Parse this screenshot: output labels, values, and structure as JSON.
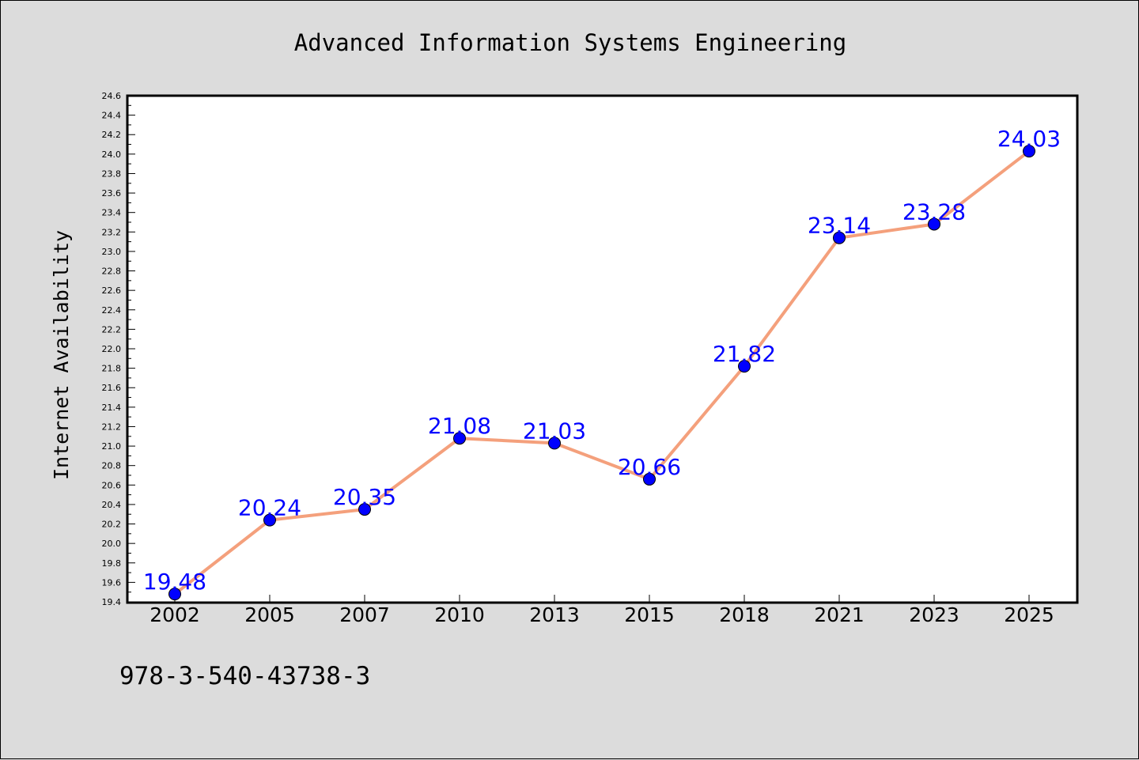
{
  "colors": {
    "background": "#dcdcdc",
    "plot_background": "#ffffff",
    "line": "#f4a07c",
    "marker": "#0000ff",
    "data_label": "#0000ff"
  },
  "footnote": "978-3-540-43738-3",
  "chart_data": {
    "type": "line",
    "title": "Advanced Information Systems Engineering",
    "xlabel": "",
    "ylabel": "Internet Availability",
    "categories": [
      "2002",
      "2005",
      "2007",
      "2010",
      "2013",
      "2015",
      "2018",
      "2021",
      "2023",
      "2025"
    ],
    "series": [
      {
        "values": [
          19.48,
          20.24,
          20.35,
          21.08,
          21.03,
          20.66,
          21.82,
          23.14,
          23.28,
          24.03
        ],
        "labels": [
          "19.48",
          "20.24",
          "20.35",
          "21.08",
          "21.03",
          "20.66",
          "21.82",
          "23.14",
          "23.28",
          "24.03"
        ]
      }
    ],
    "ylim": [
      19.4,
      24.6
    ],
    "yticks": [
      "19.4",
      "19.6",
      "19.8",
      "20.0",
      "20.2",
      "20.4",
      "20.6",
      "20.8",
      "21.0",
      "21.2",
      "21.4",
      "21.6",
      "21.8",
      "22.0",
      "22.2",
      "22.4",
      "22.6",
      "22.8",
      "23.0",
      "23.2",
      "23.4",
      "23.6",
      "23.8",
      "24.0",
      "24.2",
      "24.4",
      "24.6"
    ],
    "grid": false,
    "legend": "none"
  }
}
